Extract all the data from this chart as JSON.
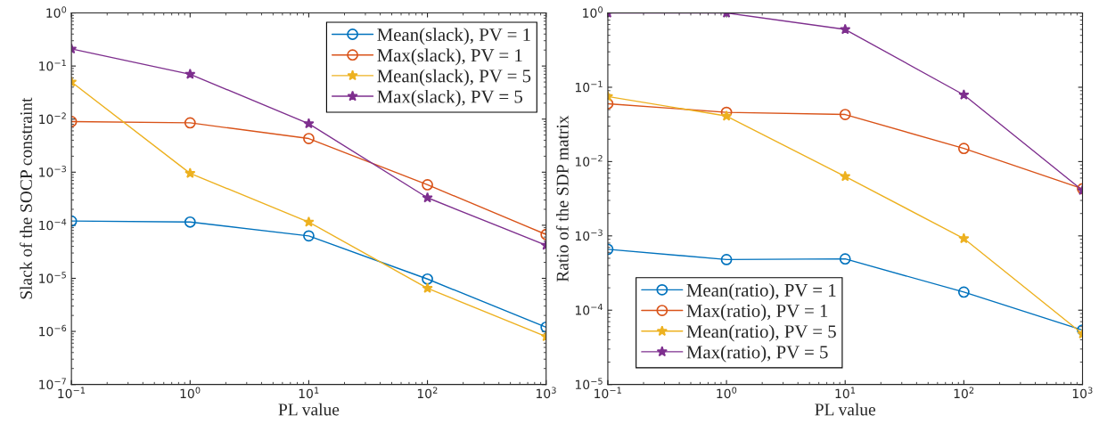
{
  "chart_data": [
    {
      "type": "line",
      "xlabel": "PL value",
      "ylabel": "Slack of the SOCP constraint",
      "x": [
        0.1,
        1,
        10,
        100,
        1000
      ],
      "log": "xy",
      "legend": "top right",
      "grid": false,
      "xlim": [
        0.1,
        1000
      ],
      "ylim": [
        1e-07,
        1
      ],
      "xticks": [
        {
          "value": 0.1,
          "label": "10$^{−1}$"
        },
        {
          "value": 1,
          "label": "10$^{0}$"
        },
        {
          "value": 10,
          "label": "10$^{1}$"
        },
        {
          "value": 100,
          "label": "10$^{2}$"
        },
        {
          "value": 1000,
          "label": "10$^{3}$"
        }
      ],
      "yticks": [
        {
          "value": 1e-07,
          "label": "10$^{−7}$"
        },
        {
          "value": 1e-06,
          "label": "10$^{−6}$"
        },
        {
          "value": 1e-05,
          "label": "10$^{−5}$"
        },
        {
          "value": 0.0001,
          "label": "10$^{−4}$"
        },
        {
          "value": 0.001,
          "label": "10$^{−3}$"
        },
        {
          "value": 0.01,
          "label": "10$^{−2}$"
        },
        {
          "value": 0.1,
          "label": "10$^{−1}$"
        },
        {
          "value": 1,
          "label": "10$^{0}$"
        }
      ],
      "series": [
        {
          "name": "Mean(slack), PV = 1",
          "color": "#0072bd",
          "marker": "circle",
          "values": [
            0.00012,
            0.000115,
            6.3e-05,
            9.7e-06,
            1.2e-06
          ]
        },
        {
          "name": "Max(slack), PV = 1",
          "color": "#d95319",
          "marker": "circle",
          "values": [
            0.009,
            0.0085,
            0.0043,
            0.00058,
            6.7e-05
          ]
        },
        {
          "name": "Mean(slack), PV = 5",
          "color": "#edb120",
          "marker": "star",
          "values": [
            0.05,
            0.00095,
            0.000115,
            6.5e-06,
            8e-07
          ]
        },
        {
          "name": "Max(slack), PV = 5",
          "color": "#7e2f8e",
          "marker": "star",
          "values": [
            0.21,
            0.07,
            0.0082,
            0.00033,
            4.2e-05
          ]
        }
      ]
    },
    {
      "type": "line",
      "xlabel": "PL value",
      "ylabel": "Ratio of the SDP matrix",
      "x": [
        0.1,
        1,
        10,
        100,
        1000
      ],
      "log": "xy",
      "legend": "bottom left",
      "grid": false,
      "xlim": [
        0.1,
        1000
      ],
      "ylim": [
        1e-05,
        1
      ],
      "xticks": [
        {
          "value": 0.1,
          "label": "10$^{−1}$"
        },
        {
          "value": 1,
          "label": "10$^{0}$"
        },
        {
          "value": 10,
          "label": "10$^{1}$"
        },
        {
          "value": 100,
          "label": "10$^{2}$"
        },
        {
          "value": 1000,
          "label": "10$^{3}$"
        }
      ],
      "yticks": [
        {
          "value": 1e-05,
          "label": "10$^{−5}$"
        },
        {
          "value": 0.0001,
          "label": "10$^{−4}$"
        },
        {
          "value": 0.001,
          "label": "10$^{−3}$"
        },
        {
          "value": 0.01,
          "label": "10$^{−2}$"
        },
        {
          "value": 0.1,
          "label": "10$^{−1}$"
        },
        {
          "value": 1,
          "label": "10$^{0}$"
        }
      ],
      "series": [
        {
          "name": "Mean(ratio), PV = 1",
          "color": "#0072bd",
          "marker": "circle",
          "values": [
            0.00066,
            0.00048,
            0.00049,
            0.000175,
            5.4e-05
          ]
        },
        {
          "name": "Max(ratio), PV = 1",
          "color": "#d95319",
          "marker": "circle",
          "values": [
            0.06,
            0.046,
            0.043,
            0.015,
            0.0043
          ]
        },
        {
          "name": "Mean(ratio), PV = 5",
          "color": "#edb120",
          "marker": "star",
          "values": [
            0.075,
            0.041,
            0.0063,
            0.00092,
            4.8e-05
          ]
        },
        {
          "name": "Max(ratio), PV = 5",
          "color": "#7e2f8e",
          "marker": "star",
          "values": [
            1.0,
            1.0,
            0.6,
            0.079,
            0.0041
          ]
        }
      ]
    }
  ]
}
